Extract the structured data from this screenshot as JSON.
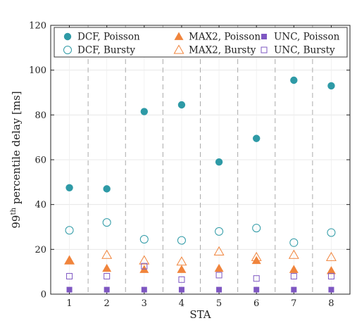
{
  "chart_data": {
    "type": "scatter",
    "xlabel": "STA",
    "ylabel": "99th percentile delay [ms]",
    "ylabel_parts": {
      "pre": "99",
      "sup": "th",
      "post": " percentile delay [ms]"
    },
    "categories": [
      "1",
      "2",
      "3",
      "4",
      "5",
      "6",
      "7",
      "8"
    ],
    "xlim": [
      0.5,
      8.5
    ],
    "ylim": [
      0,
      120
    ],
    "yticks": [
      0,
      20,
      40,
      60,
      80,
      100,
      120
    ],
    "ytick_labels": [
      "0",
      "20",
      "40",
      "60",
      "80",
      "100",
      "120"
    ],
    "grid": true,
    "group_separators": "dashed vertical lines between STAs",
    "legend_position": "top, 3 columns",
    "series": [
      {
        "name": "DCF, Poisson",
        "marker": "circle",
        "filled": true,
        "color": "#2e9aa6",
        "values": [
          47.5,
          47,
          81.5,
          84.5,
          59,
          69.5,
          95.5,
          93
        ]
      },
      {
        "name": "MAX2, Poisson",
        "marker": "triangle",
        "filled": true,
        "color": "#f0843c",
        "values": [
          15,
          11.5,
          11,
          11,
          11.5,
          15,
          11,
          10.5
        ]
      },
      {
        "name": "UNC, Poisson",
        "marker": "square",
        "filled": true,
        "color": "#7e57c2",
        "values": [
          2,
          2,
          2,
          2,
          2,
          2,
          2,
          2
        ]
      },
      {
        "name": "DCF, Bursty",
        "marker": "circle",
        "filled": false,
        "color": "#2e9aa6",
        "values": [
          28.5,
          32,
          24.5,
          24,
          28,
          29.5,
          23,
          27.5
        ]
      },
      {
        "name": "MAX2, Bursty",
        "marker": "triangle",
        "filled": false,
        "color": "#f0843c",
        "values": [
          15,
          17.5,
          15,
          14.5,
          19,
          16.5,
          17.5,
          16.5
        ]
      },
      {
        "name": "UNC, Bursty",
        "marker": "square",
        "filled": false,
        "color": "#7e57c2",
        "values": [
          8,
          8,
          12.5,
          6.5,
          8.5,
          7,
          8,
          8
        ]
      }
    ]
  }
}
